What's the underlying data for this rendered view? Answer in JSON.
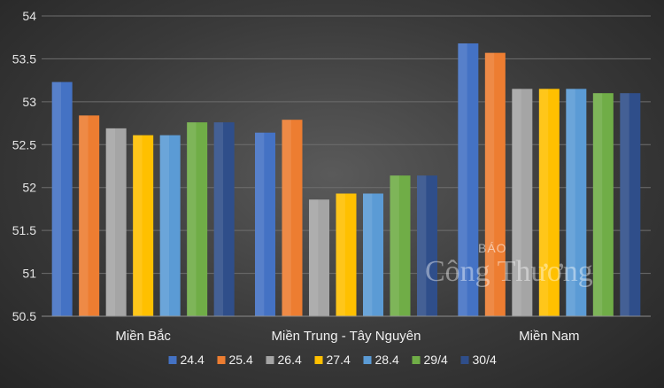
{
  "chart_data": {
    "type": "bar",
    "categories": [
      "Miền Bắc",
      "Miền Trung - Tây Nguyên",
      "Miền Nam"
    ],
    "series": [
      {
        "name": "24.4",
        "color": "#4472c4",
        "values": [
          53.23,
          52.64,
          53.68
        ]
      },
      {
        "name": "25.4",
        "color": "#ed7d31",
        "values": [
          52.84,
          52.79,
          53.57
        ]
      },
      {
        "name": "26.4",
        "color": "#a5a5a5",
        "values": [
          52.69,
          51.86,
          53.15
        ]
      },
      {
        "name": "27.4",
        "color": "#ffc000",
        "values": [
          52.61,
          51.93,
          53.15
        ]
      },
      {
        "name": "28.4",
        "color": "#5b9bd5",
        "values": [
          52.61,
          51.93,
          53.15
        ]
      },
      {
        "name": "29/4",
        "color": "#70ad47",
        "values": [
          52.76,
          52.14,
          53.1
        ]
      },
      {
        "name": "30/4",
        "color": "#2f4e8a",
        "values": [
          52.76,
          52.14,
          53.1
        ]
      }
    ],
    "yticks": [
      "50.5",
      "51",
      "51.5",
      "52",
      "52.5",
      "53",
      "53.5",
      "54"
    ],
    "ylim": [
      50.5,
      54
    ],
    "grid": true,
    "legend_position": "bottom"
  },
  "watermark": {
    "small": "BÁO",
    "big": "Công Thương"
  }
}
